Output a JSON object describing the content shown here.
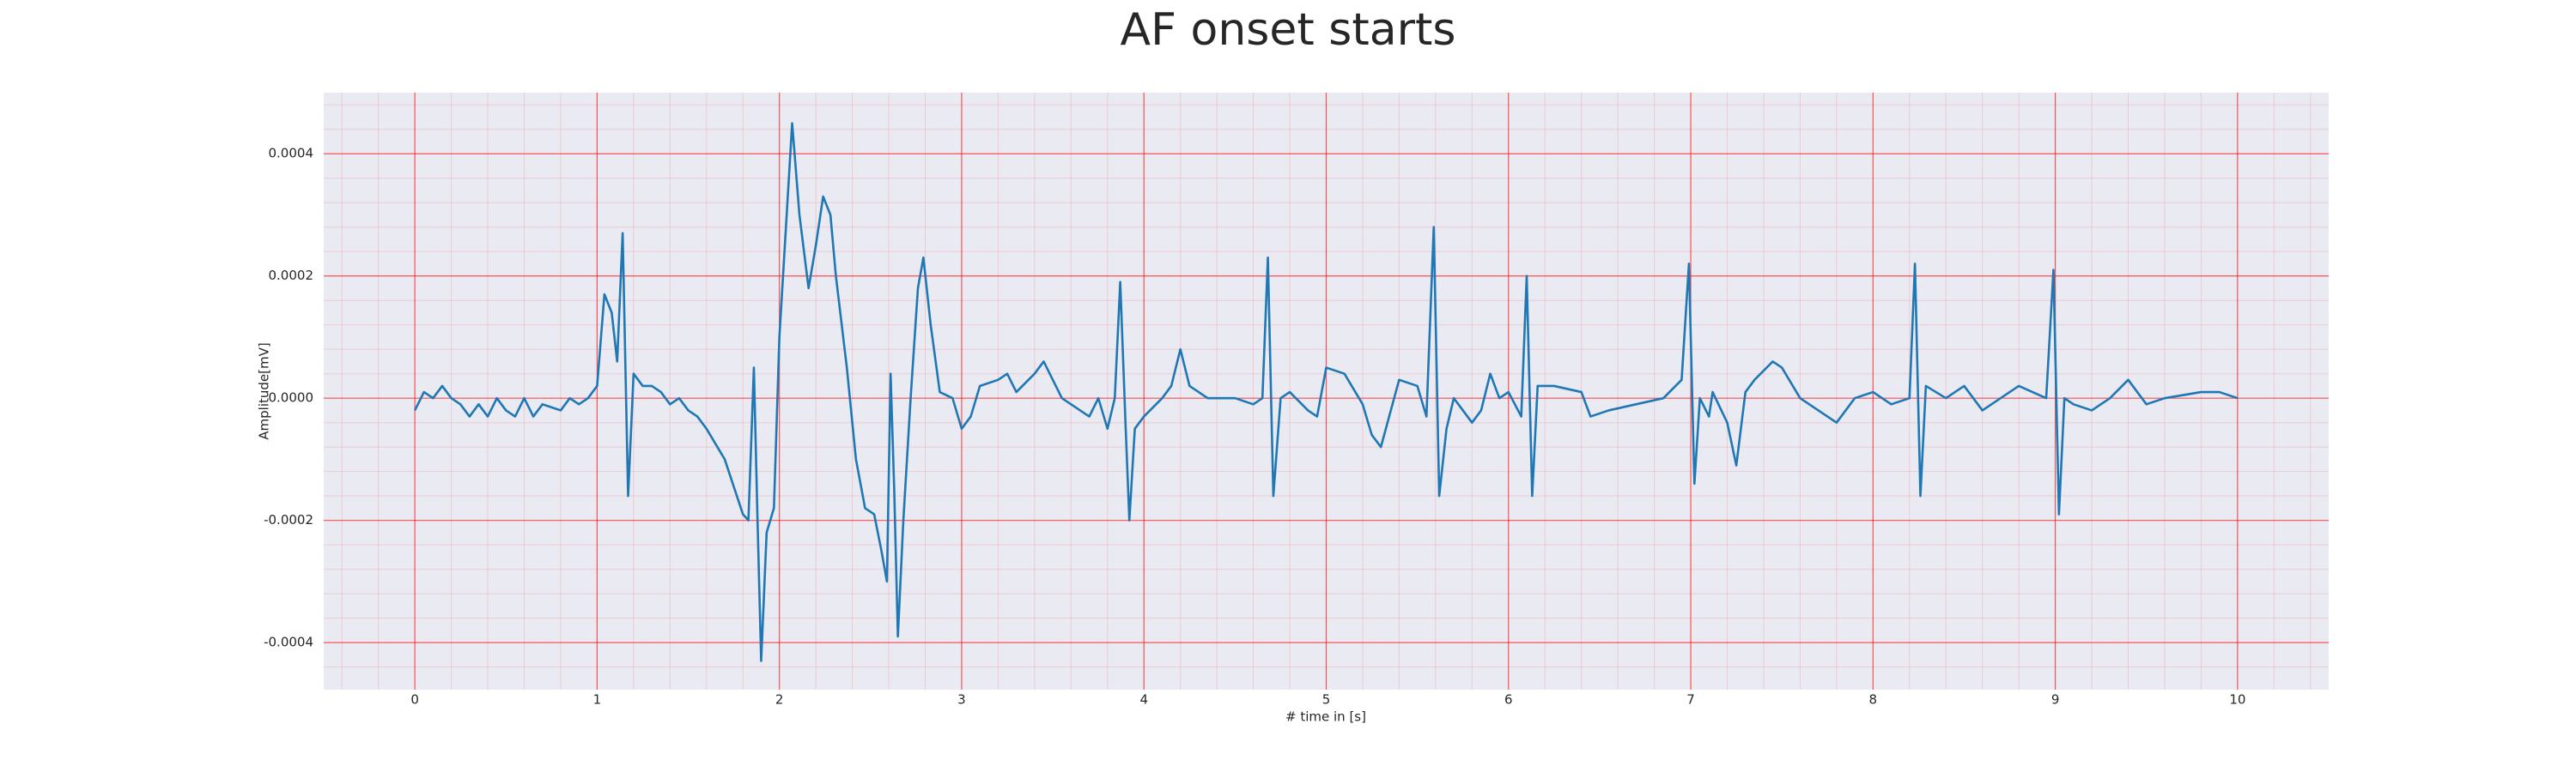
{
  "chart_data": {
    "type": "line",
    "title": "AF onset starts",
    "x_label": "# time in [s]",
    "y_label": "Amplitude[mV]",
    "color": "#1f77b4",
    "grid": true,
    "xlim": [
      -0.5,
      10.5
    ],
    "xticks": [
      0,
      1,
      2,
      3,
      4,
      5,
      6,
      7,
      8,
      9,
      10
    ],
    "ylim": [
      -0.000477,
      0.0005
    ],
    "yticks": [
      -0.0004,
      -0.0002,
      {
        "value": 0,
        "label": "0.0000"
      },
      0.0002,
      0.0004
    ],
    "x": [
      0,
      0.05,
      0.1,
      0.15,
      0.2,
      0.25,
      0.3,
      0.35,
      0.4,
      0.45,
      0.5,
      0.55,
      0.6,
      0.65,
      0.7,
      0.8,
      0.85,
      0.9,
      0.95,
      1,
      1.04,
      1.08,
      1.11,
      1.14,
      1.17,
      1.2,
      1.25,
      1.3,
      1.35,
      1.4,
      1.45,
      1.5,
      1.55,
      1.6,
      1.7,
      1.8,
      1.83,
      1.86,
      1.88,
      1.9,
      1.93,
      1.97,
      2,
      2.04,
      2.07,
      2.11,
      2.16,
      2.2,
      2.24,
      2.28,
      2.31,
      2.37,
      2.42,
      2.47,
      2.52,
      2.56,
      2.59,
      2.61,
      2.63,
      2.65,
      2.68,
      2.72,
      2.76,
      2.79,
      2.83,
      2.88,
      2.95,
      3,
      3.05,
      3.1,
      3.2,
      3.25,
      3.3,
      3.4,
      3.45,
      3.5,
      3.55,
      3.6,
      3.7,
      3.75,
      3.8,
      3.84,
      3.87,
      3.9,
      3.92,
      3.95,
      4,
      4.1,
      4.15,
      4.2,
      4.25,
      4.35,
      4.5,
      4.6,
      4.65,
      4.68,
      4.71,
      4.75,
      4.8,
      4.9,
      4.95,
      5,
      5.1,
      5.2,
      5.25,
      5.3,
      5.4,
      5.5,
      5.55,
      5.59,
      5.62,
      5.66,
      5.7,
      5.8,
      5.85,
      5.9,
      5.95,
      6,
      6.07,
      6.1,
      6.13,
      6.16,
      6.25,
      6.4,
      6.45,
      6.55,
      6.7,
      6.85,
      6.95,
      6.99,
      7.02,
      7.05,
      7.1,
      7.12,
      7.2,
      7.25,
      7.3,
      7.35,
      7.45,
      7.5,
      7.6,
      7.7,
      7.8,
      7.9,
      8,
      8.1,
      8.2,
      8.23,
      8.26,
      8.29,
      8.4,
      8.5,
      8.6,
      8.7,
      8.8,
      8.95,
      8.99,
      9.02,
      9.05,
      9.1,
      9.2,
      9.3,
      9.4,
      9.5,
      9.6,
      9.8,
      9.9,
      10
    ],
    "values": [
      -2e-05,
      1e-05,
      0,
      2e-05,
      0,
      -1e-05,
      -3e-05,
      -1e-05,
      -3e-05,
      0,
      -2e-05,
      -3e-05,
      0,
      -3e-05,
      -1e-05,
      -2e-05,
      0,
      -1e-05,
      0,
      2e-05,
      0.00017,
      0.00014,
      6e-05,
      0.00027,
      -0.00016,
      4e-05,
      2e-05,
      2e-05,
      1e-05,
      -1e-05,
      0,
      -2e-05,
      -3e-05,
      -5e-05,
      -0.0001,
      -0.00019,
      -0.0002,
      5e-05,
      -0.0002,
      -0.00043,
      -0.00022,
      -0.00018,
      0.0001,
      0.0003,
      0.00045,
      0.0003,
      0.00018,
      0.00025,
      0.00033,
      0.0003,
      0.0002,
      5e-05,
      -0.0001,
      -0.00018,
      -0.00019,
      -0.00025,
      -0.0003,
      4e-05,
      -0.00015,
      -0.00039,
      -0.0002,
      0,
      0.00018,
      0.00023,
      0.00012,
      1e-05,
      0,
      -5e-05,
      -3e-05,
      2e-05,
      3e-05,
      4e-05,
      1e-05,
      4e-05,
      6e-05,
      3e-05,
      0,
      -1e-05,
      -3e-05,
      0,
      -5e-05,
      0,
      0.00019,
      -5e-05,
      -0.0002,
      -5e-05,
      -3e-05,
      0,
      2e-05,
      8e-05,
      2e-05,
      0,
      0,
      -1e-05,
      0,
      0.00023,
      -0.00016,
      0,
      1e-05,
      -2e-05,
      -3e-05,
      5e-05,
      4e-05,
      -1e-05,
      -6e-05,
      -8e-05,
      3e-05,
      2e-05,
      -3e-05,
      0.00028,
      -0.00016,
      -5e-05,
      0,
      -4e-05,
      -2e-05,
      4e-05,
      0,
      1e-05,
      -3e-05,
      0.0002,
      -0.00016,
      2e-05,
      2e-05,
      1e-05,
      -3e-05,
      -2e-05,
      -1e-05,
      0,
      3e-05,
      0.00022,
      -0.00014,
      0,
      -3e-05,
      1e-05,
      -4e-05,
      -0.00011,
      1e-05,
      3e-05,
      6e-05,
      5e-05,
      0,
      -2e-05,
      -4e-05,
      0,
      1e-05,
      -1e-05,
      0,
      0.00022,
      -0.00016,
      2e-05,
      0,
      2e-05,
      -2e-05,
      0,
      2e-05,
      0,
      0.00021,
      -0.00019,
      0,
      -1e-05,
      -2e-05,
      0,
      3e-05,
      -1e-05,
      0,
      1e-05,
      1e-05,
      0
    ]
  }
}
